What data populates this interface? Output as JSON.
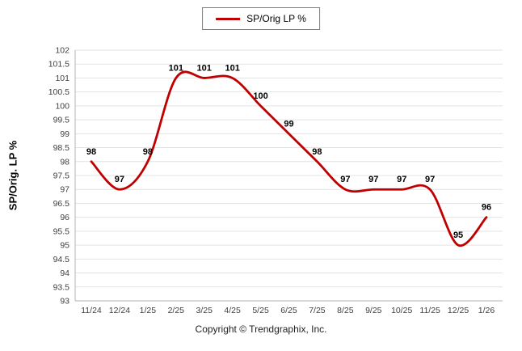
{
  "legend": {
    "label": "SP/Orig LP %"
  },
  "footer": {
    "copyright": "Copyright © Trendgraphix, Inc."
  },
  "chart_data": {
    "type": "line",
    "title": "",
    "xlabel": "",
    "ylabel": "SP/Orig. LP %",
    "categories": [
      "11/24",
      "12/24",
      "1/25",
      "2/25",
      "3/25",
      "4/25",
      "5/25",
      "6/25",
      "7/25",
      "8/25",
      "9/25",
      "10/25",
      "11/25",
      "12/25",
      "1/26"
    ],
    "series": [
      {
        "name": "SP/Orig LP %",
        "values": [
          98,
          97,
          98,
          101,
          101,
          101,
          100,
          99,
          98,
          97,
          97,
          97,
          97,
          95,
          96
        ],
        "color": "#c00000"
      }
    ],
    "data_labels": [
      "98",
      "97",
      "98",
      "101",
      "101",
      "101",
      "100",
      "99",
      "98",
      "97",
      "97",
      "97",
      "97",
      "95",
      "96"
    ],
    "ylim": [
      93,
      102
    ],
    "ytick_step": 0.5,
    "yticks": [
      93,
      93.5,
      94,
      94.5,
      95,
      95.5,
      96,
      96.5,
      97,
      97.5,
      98,
      98.5,
      99,
      99.5,
      100,
      100.5,
      101,
      101.5,
      102
    ],
    "grid": "horizontal",
    "legend_position": "top-center",
    "line_style": "smooth"
  }
}
